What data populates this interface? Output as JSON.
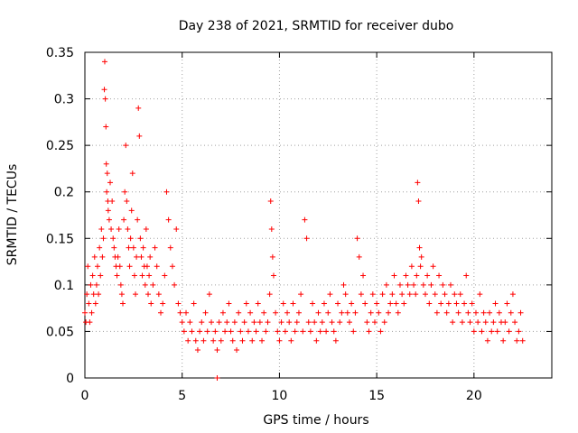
{
  "chart_data": {
    "type": "scatter",
    "title": "Day 238 of 2021, SRMTID for receiver dubo",
    "xlabel": "GPS time / hours",
    "ylabel": "SRMTID / TECUs",
    "xlim": [
      0,
      24
    ],
    "ylim": [
      0,
      0.35
    ],
    "xticks": [
      0,
      5,
      10,
      15,
      20
    ],
    "xtick_labels": [
      "0",
      "5",
      "10",
      "15",
      "20"
    ],
    "yticks": [
      0,
      0.05,
      0.1,
      0.15,
      0.2,
      0.25,
      0.3,
      0.35
    ],
    "ytick_labels": [
      "0",
      "0.05",
      "0.1",
      "0.15",
      "0.2",
      "0.25",
      "0.3",
      "0.35"
    ],
    "grid": true,
    "marker": "+",
    "marker_color": "#ff0000",
    "series": [
      {
        "name": "SRMTID",
        "x": [
          0.0,
          0.05,
          0.1,
          0.15,
          0.2,
          0.25,
          0.3,
          0.35,
          0.4,
          0.45,
          0.5,
          0.55,
          0.6,
          0.65,
          0.7,
          0.75,
          0.8,
          0.85,
          0.9,
          0.95,
          1.0,
          1.02,
          1.05,
          1.08,
          1.1,
          1.12,
          1.15,
          1.18,
          1.2,
          1.25,
          1.3,
          1.35,
          1.4,
          1.45,
          1.5,
          1.55,
          1.6,
          1.65,
          1.7,
          1.75,
          1.8,
          1.85,
          1.9,
          1.95,
          2.0,
          2.05,
          2.1,
          2.15,
          2.2,
          2.25,
          2.3,
          2.35,
          2.4,
          2.45,
          2.5,
          2.55,
          2.6,
          2.65,
          2.7,
          2.75,
          2.8,
          2.85,
          2.9,
          2.95,
          3.0,
          3.05,
          3.1,
          3.15,
          3.2,
          3.25,
          3.3,
          3.35,
          3.4,
          3.5,
          3.6,
          3.7,
          3.8,
          3.9,
          4.0,
          4.1,
          4.2,
          4.3,
          4.4,
          4.5,
          4.6,
          4.7,
          4.8,
          4.9,
          5.0,
          5.1,
          5.2,
          5.3,
          5.4,
          5.5,
          5.6,
          5.7,
          5.8,
          5.9,
          6.0,
          6.1,
          6.2,
          6.3,
          6.4,
          6.5,
          6.6,
          6.7,
          6.8,
          6.9,
          7.0,
          7.1,
          7.2,
          7.3,
          7.4,
          7.5,
          7.6,
          7.7,
          7.8,
          7.9,
          8.0,
          8.1,
          8.2,
          8.3,
          8.4,
          8.5,
          8.6,
          8.7,
          8.8,
          8.9,
          9.0,
          9.1,
          9.2,
          9.3,
          9.4,
          9.5,
          9.55,
          9.6,
          9.65,
          9.7,
          9.8,
          9.9,
          10.0,
          10.1,
          10.2,
          10.3,
          10.4,
          10.5,
          10.6,
          10.7,
          10.8,
          10.9,
          11.0,
          11.1,
          11.2,
          11.3,
          11.4,
          11.5,
          11.6,
          11.7,
          11.8,
          11.9,
          12.0,
          12.1,
          12.2,
          12.3,
          12.4,
          12.5,
          12.6,
          12.7,
          12.8,
          12.9,
          13.0,
          13.1,
          13.2,
          13.3,
          13.4,
          13.5,
          13.6,
          13.7,
          13.8,
          13.9,
          14.0,
          14.1,
          14.2,
          14.3,
          14.4,
          14.5,
          14.6,
          14.7,
          14.8,
          14.9,
          15.0,
          15.1,
          15.2,
          15.3,
          15.4,
          15.5,
          15.6,
          15.7,
          15.8,
          15.9,
          16.0,
          16.1,
          16.2,
          16.3,
          16.4,
          16.5,
          16.6,
          16.7,
          16.8,
          16.9,
          17.0,
          17.05,
          17.1,
          17.15,
          17.2,
          17.25,
          17.3,
          17.4,
          17.5,
          17.6,
          17.7,
          17.8,
          17.9,
          18.0,
          18.1,
          18.2,
          18.3,
          18.4,
          18.5,
          18.6,
          18.7,
          18.8,
          18.9,
          19.0,
          19.1,
          19.2,
          19.3,
          19.4,
          19.5,
          19.6,
          19.7,
          19.8,
          19.9,
          20.0,
          20.1,
          20.2,
          20.3,
          20.4,
          20.5,
          20.6,
          20.7,
          20.8,
          20.9,
          21.0,
          21.1,
          21.2,
          21.3,
          21.4,
          21.5,
          21.6,
          21.7,
          21.8,
          21.9,
          22.0,
          22.1,
          22.2,
          22.3,
          22.4,
          22.5,
          6.8
        ],
        "y": [
          0.07,
          0.06,
          0.09,
          0.12,
          0.08,
          0.06,
          0.1,
          0.07,
          0.11,
          0.09,
          0.13,
          0.08,
          0.1,
          0.12,
          0.09,
          0.14,
          0.11,
          0.16,
          0.13,
          0.15,
          0.31,
          0.34,
          0.3,
          0.27,
          0.23,
          0.2,
          0.22,
          0.19,
          0.18,
          0.17,
          0.21,
          0.16,
          0.19,
          0.15,
          0.14,
          0.13,
          0.12,
          0.11,
          0.13,
          0.16,
          0.12,
          0.1,
          0.09,
          0.08,
          0.17,
          0.2,
          0.25,
          0.19,
          0.16,
          0.14,
          0.12,
          0.15,
          0.18,
          0.22,
          0.14,
          0.11,
          0.09,
          0.13,
          0.17,
          0.29,
          0.26,
          0.15,
          0.13,
          0.11,
          0.14,
          0.12,
          0.1,
          0.16,
          0.12,
          0.09,
          0.11,
          0.13,
          0.08,
          0.1,
          0.14,
          0.12,
          0.09,
          0.07,
          0.08,
          0.11,
          0.2,
          0.17,
          0.14,
          0.12,
          0.1,
          0.16,
          0.08,
          0.07,
          0.06,
          0.05,
          0.07,
          0.04,
          0.06,
          0.05,
          0.08,
          0.04,
          0.03,
          0.05,
          0.06,
          0.04,
          0.07,
          0.05,
          0.09,
          0.06,
          0.04,
          0.05,
          0.03,
          0.06,
          0.04,
          0.07,
          0.05,
          0.06,
          0.08,
          0.05,
          0.04,
          0.06,
          0.03,
          0.07,
          0.05,
          0.04,
          0.06,
          0.08,
          0.05,
          0.07,
          0.04,
          0.06,
          0.05,
          0.08,
          0.06,
          0.04,
          0.07,
          0.05,
          0.06,
          0.09,
          0.19,
          0.16,
          0.13,
          0.11,
          0.07,
          0.05,
          0.04,
          0.06,
          0.08,
          0.05,
          0.07,
          0.06,
          0.04,
          0.08,
          0.05,
          0.06,
          0.07,
          0.09,
          0.05,
          0.17,
          0.15,
          0.06,
          0.05,
          0.08,
          0.06,
          0.04,
          0.07,
          0.05,
          0.06,
          0.08,
          0.05,
          0.07,
          0.09,
          0.06,
          0.05,
          0.04,
          0.08,
          0.06,
          0.07,
          0.1,
          0.09,
          0.07,
          0.06,
          0.08,
          0.05,
          0.07,
          0.15,
          0.13,
          0.09,
          0.11,
          0.08,
          0.06,
          0.05,
          0.07,
          0.09,
          0.06,
          0.08,
          0.07,
          0.05,
          0.09,
          0.06,
          0.1,
          0.07,
          0.08,
          0.09,
          0.11,
          0.08,
          0.07,
          0.1,
          0.09,
          0.08,
          0.11,
          0.1,
          0.09,
          0.12,
          0.1,
          0.09,
          0.11,
          0.21,
          0.19,
          0.14,
          0.12,
          0.13,
          0.1,
          0.09,
          0.11,
          0.08,
          0.1,
          0.12,
          0.09,
          0.07,
          0.11,
          0.08,
          0.1,
          0.09,
          0.07,
          0.08,
          0.1,
          0.06,
          0.09,
          0.08,
          0.07,
          0.09,
          0.06,
          0.08,
          0.11,
          0.07,
          0.06,
          0.08,
          0.05,
          0.07,
          0.06,
          0.09,
          0.05,
          0.07,
          0.06,
          0.04,
          0.07,
          0.05,
          0.06,
          0.08,
          0.05,
          0.07,
          0.06,
          0.04,
          0.06,
          0.08,
          0.05,
          0.07,
          0.09,
          0.06,
          0.04,
          0.05,
          0.07,
          0.04,
          0.0
        ]
      }
    ]
  }
}
